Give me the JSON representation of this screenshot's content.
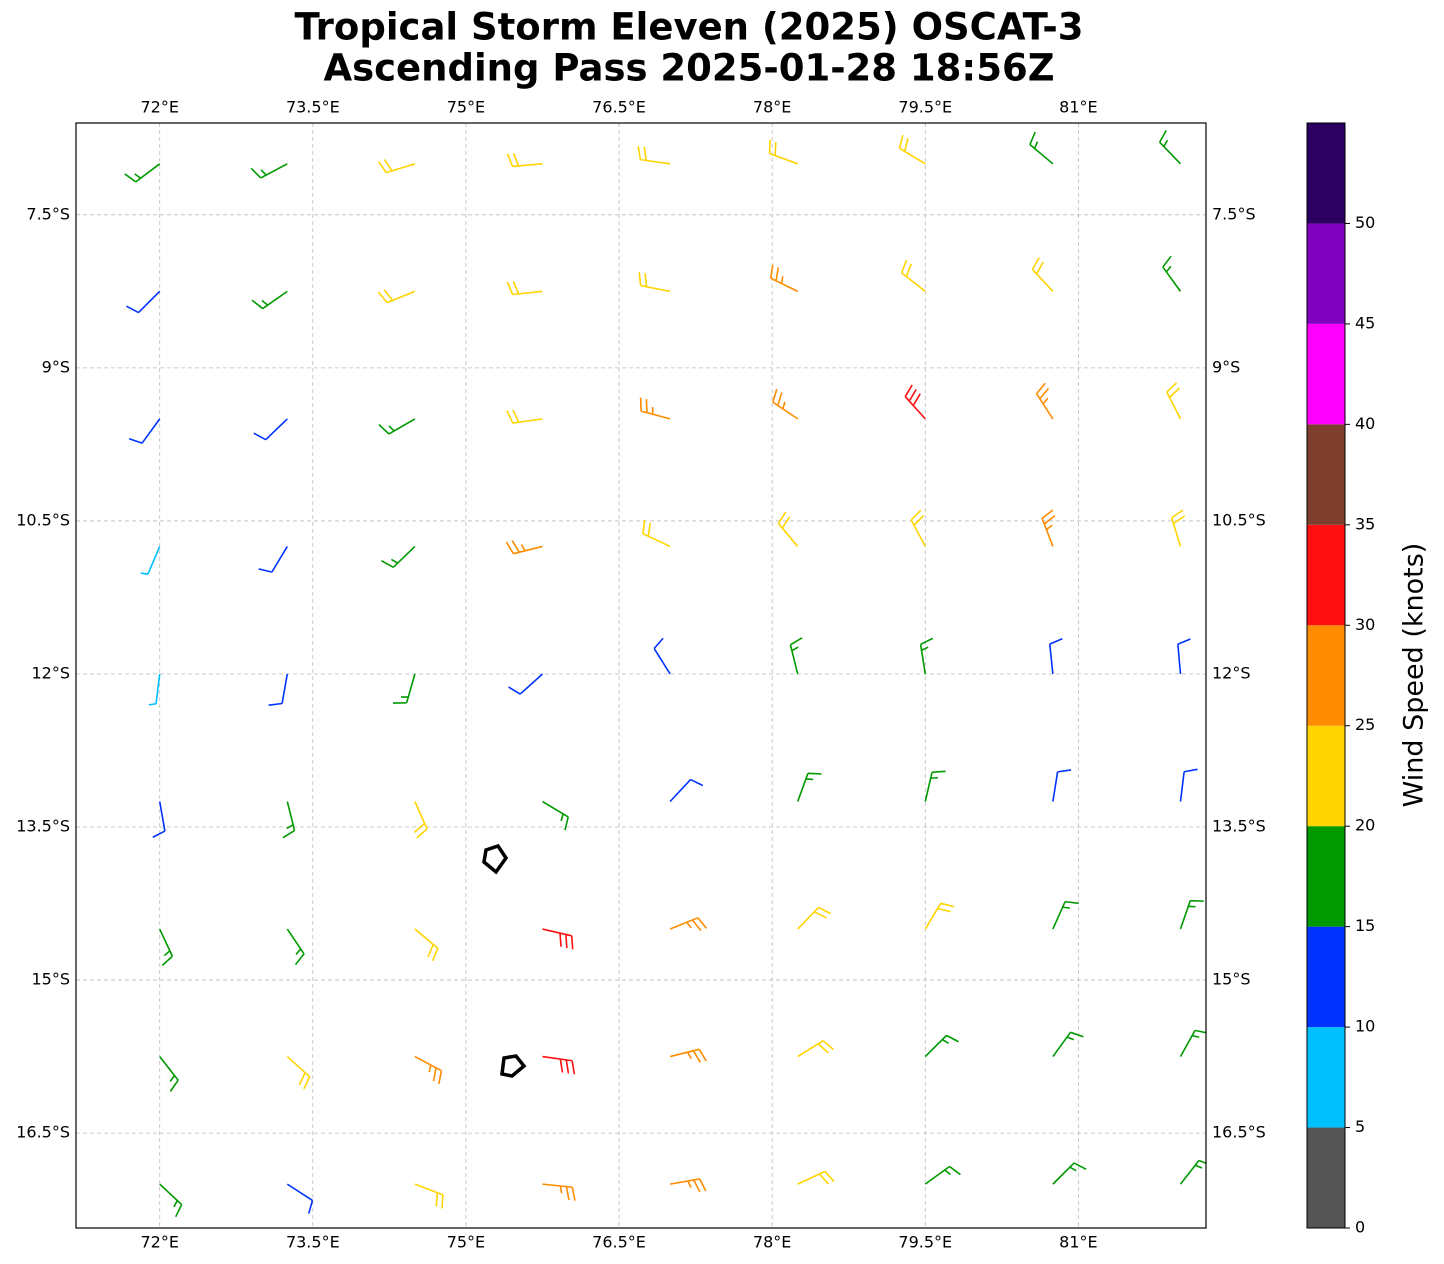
{
  "chart_data": {
    "type": "wind-barbs",
    "title": "Tropical Storm Eleven (2025) OSCAT-3",
    "subtitle": "Ascending Pass 2025-01-28 18:56Z",
    "xlim": [
      71.18,
      82.25
    ],
    "ylim": [
      -17.43,
      -6.6
    ],
    "xticks": [
      {
        "value": 72,
        "label": "72°E"
      },
      {
        "value": 73.5,
        "label": "73.5°E"
      },
      {
        "value": 75,
        "label": "75°E"
      },
      {
        "value": 76.5,
        "label": "76.5°E"
      },
      {
        "value": 78,
        "label": "78°E"
      },
      {
        "value": 79.5,
        "label": "79.5°E"
      },
      {
        "value": 81,
        "label": "81°E"
      }
    ],
    "yticks": [
      {
        "value": -7.5,
        "label": "7.5°S"
      },
      {
        "value": -9,
        "label": "9°S"
      },
      {
        "value": -10.5,
        "label": "10.5°S"
      },
      {
        "value": -12,
        "label": "12°S"
      },
      {
        "value": -13.5,
        "label": "13.5°S"
      },
      {
        "value": -15,
        "label": "15°S"
      },
      {
        "value": -16.5,
        "label": "16.5°S"
      }
    ],
    "grid": true,
    "barbs": {
      "lon": [
        72,
        73.25,
        74.5,
        75.75,
        77,
        78.25,
        79.5,
        80.75,
        82
      ],
      "lat": [
        -7,
        -8.25,
        -9.5,
        -10.75,
        -12,
        -13.25,
        -14.5,
        -15.75,
        -17
      ],
      "speed": [
        [
          17,
          17,
          22,
          22,
          22,
          22,
          22,
          17,
          17
        ],
        [
          12,
          17,
          22,
          22,
          22,
          27,
          22,
          22,
          17
        ],
        [
          12,
          12,
          17,
          22,
          27,
          27,
          32,
          27,
          22
        ],
        [
          7,
          12,
          17,
          27,
          22,
          22,
          22,
          27,
          22
        ],
        [
          7,
          12,
          17,
          12,
          12,
          17,
          17,
          12,
          12
        ],
        [
          12,
          17,
          22,
          17,
          12,
          17,
          17,
          12,
          12
        ],
        [
          17,
          17,
          22,
          32,
          27,
          22,
          22,
          17,
          17
        ],
        [
          17,
          22,
          27,
          32,
          27,
          22,
          17,
          17,
          17
        ],
        [
          17,
          12,
          22,
          27,
          27,
          22,
          17,
          17,
          17
        ]
      ],
      "direction": [
        [
          233,
          242,
          253,
          265,
          278,
          290,
          301,
          310,
          316
        ],
        [
          225,
          235,
          248,
          264,
          281,
          296,
          308,
          317,
          324
        ],
        [
          216,
          226,
          240,
          262,
          285,
          304,
          318,
          327,
          333
        ],
        [
          203,
          211,
          226,
          256,
          295,
          320,
          332,
          339,
          343
        ],
        [
          187,
          190,
          196,
          228,
          328,
          346,
          351,
          354,
          355
        ],
        [
          170,
          166,
          156,
          121,
          43,
          20,
          13,
          9,
          7
        ],
        [
          155,
          146,
          130,
          103,
          68,
          44,
          31,
          24,
          19
        ],
        [
          142,
          132,
          118,
          98,
          76,
          58,
          45,
          36,
          29
        ],
        [
          133,
          123,
          111,
          96,
          80,
          65,
          54,
          45,
          38
        ]
      ]
    },
    "colorbar": {
      "label": "Wind Speed (knots)",
      "clim": [
        0,
        55
      ],
      "ticks": [
        0,
        5,
        10,
        15,
        20,
        25,
        30,
        35,
        40,
        45,
        50
      ],
      "bounds": [
        0,
        5,
        10,
        15,
        20,
        25,
        30,
        35,
        40,
        45,
        50,
        55
      ],
      "colors": [
        "#555555",
        "#00bfff",
        "#0033ff",
        "#009900",
        "#ffd400",
        "#ff8c00",
        "#ff1010",
        "#7f3f2f",
        "#ff00ff",
        "#8000c0",
        "#2b0060"
      ]
    }
  }
}
